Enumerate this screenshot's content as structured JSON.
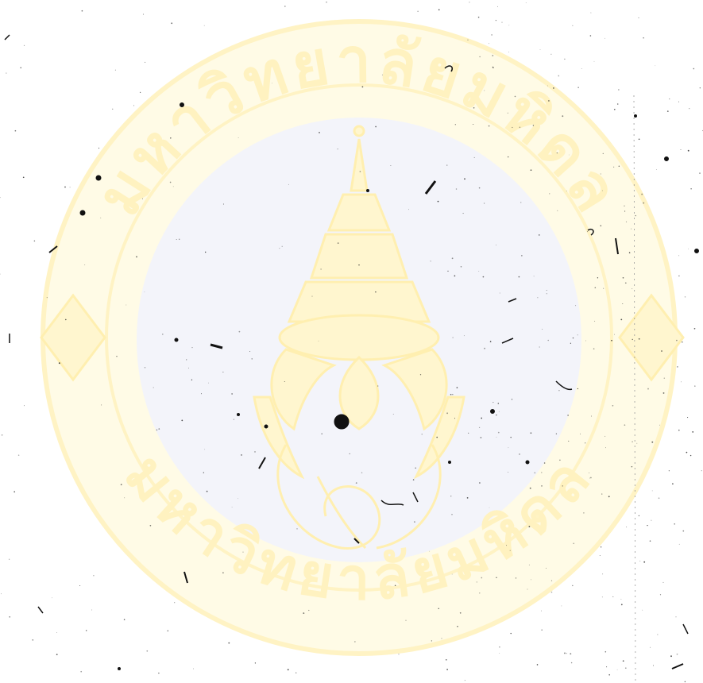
{
  "document": {
    "kind": "scanned-page",
    "content": "blank page with scanning specks",
    "watermark": {
      "type": "university-seal",
      "ring_text_top": "มหาวิทยาลัยมหิดล",
      "ring_text_bottom": "มหาวิทยาลัยมหิดล",
      "colors": {
        "ring": "#fffbe6",
        "ring_edge": "#fff3c4",
        "center_disc": "#f3f4fa",
        "emblem": "#fff6cf",
        "emblem_edge": "#ffefb0"
      }
    },
    "colors": {
      "paper": "#ffffff",
      "speck": "#111111"
    }
  }
}
